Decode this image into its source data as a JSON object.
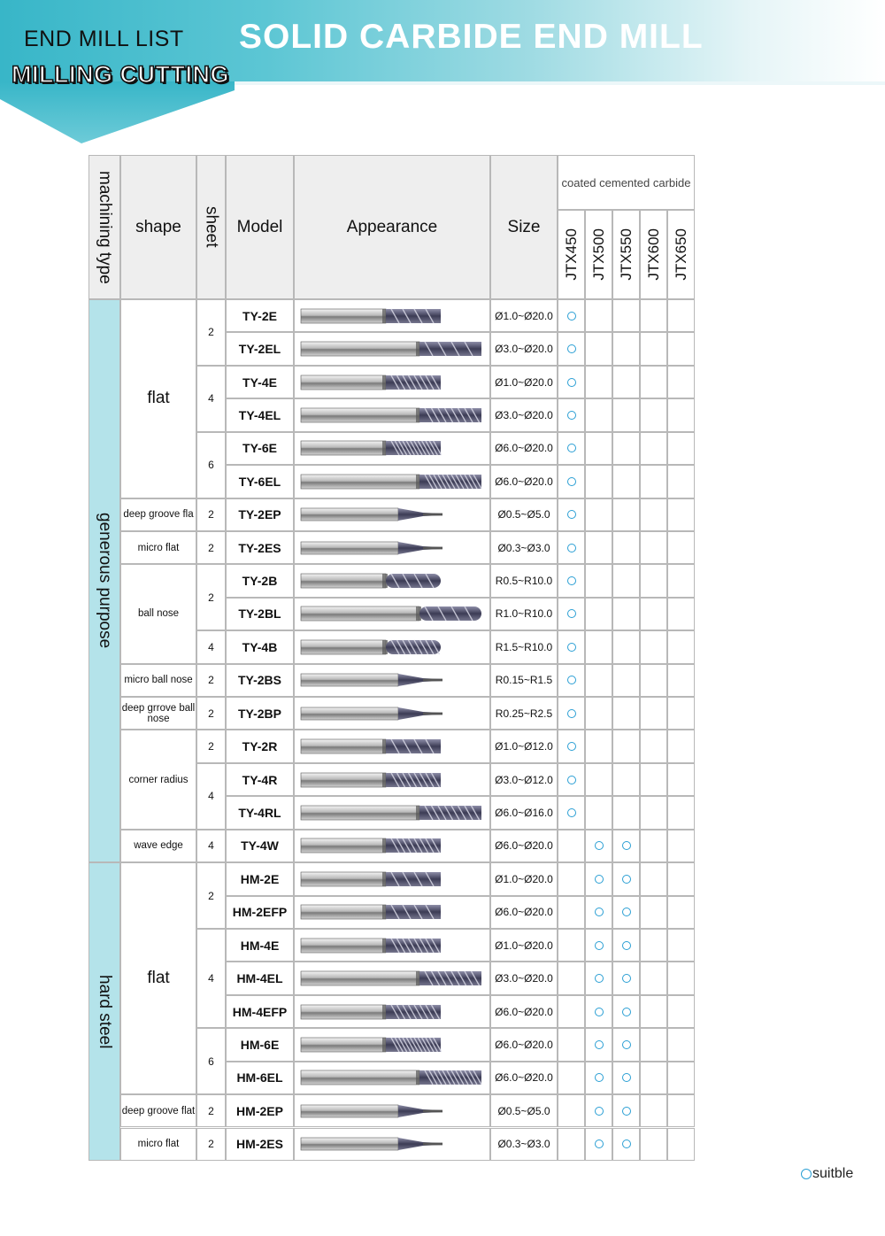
{
  "header": {
    "left_title": "END MILL LIST",
    "sub_title": "MILLING CUTTING",
    "main_title": "SOLID CARBIDE END MILL"
  },
  "columns": {
    "machining_type": "machining type",
    "shape": "shape",
    "sheet": "sheet",
    "model": "Model",
    "appearance": "Appearance",
    "size": "Size",
    "coating_group": "coated cemented carbide",
    "grades": [
      "JTX450",
      "JTX500",
      "JTX550",
      "JTX600",
      "JTX650"
    ]
  },
  "machining_types": [
    {
      "label": "generous purpose",
      "rows": 17
    },
    {
      "label": "hard steel",
      "rows": 9
    }
  ],
  "shape_groups": [
    {
      "label": "flat",
      "rows": 6,
      "big": true
    },
    {
      "label": "deep groove fla",
      "rows": 1
    },
    {
      "label": "micro flat",
      "rows": 1
    },
    {
      "label": "ball nose",
      "rows": 3
    },
    {
      "label": "micro ball nose",
      "rows": 1
    },
    {
      "label": "deep grrove ball nose",
      "rows": 1
    },
    {
      "label": "corner radius",
      "rows": 3
    },
    {
      "label": "wave edge",
      "rows": 1
    },
    {
      "label": "flat",
      "rows": 7,
      "big": true
    },
    {
      "label": "deep groove flat",
      "rows": 1
    },
    {
      "label": "micro flat",
      "rows": 1
    }
  ],
  "sheet_groups": [
    {
      "value": "2",
      "rows": 2
    },
    {
      "value": "4",
      "rows": 2
    },
    {
      "value": "6",
      "rows": 2
    },
    {
      "value": "2",
      "rows": 1
    },
    {
      "value": "2",
      "rows": 1
    },
    {
      "value": "2",
      "rows": 2
    },
    {
      "value": "4",
      "rows": 1
    },
    {
      "value": "2",
      "rows": 1
    },
    {
      "value": "2",
      "rows": 1
    },
    {
      "value": "2",
      "rows": 1
    },
    {
      "value": "4",
      "rows": 2
    },
    {
      "value": "4",
      "rows": 1
    },
    {
      "value": "2",
      "rows": 2
    },
    {
      "value": "4",
      "rows": 3
    },
    {
      "value": "6",
      "rows": 2
    },
    {
      "value": "2",
      "rows": 1
    },
    {
      "value": "2",
      "rows": 1
    }
  ],
  "rows": [
    {
      "model": "TY-2E",
      "size": "Ø1.0~Ø20.0",
      "suitable": [
        true,
        false,
        false,
        false,
        false
      ],
      "tool_icon": "short-2-flute-end-mill-icon"
    },
    {
      "model": "TY-2EL",
      "size": "Ø3.0~Ø20.0",
      "suitable": [
        true,
        false,
        false,
        false,
        false
      ],
      "tool_icon": "long-2-flute-end-mill-icon"
    },
    {
      "model": "TY-4E",
      "size": "Ø1.0~Ø20.0",
      "suitable": [
        true,
        false,
        false,
        false,
        false
      ],
      "tool_icon": "short-4-flute-end-mill-icon"
    },
    {
      "model": "TY-4EL",
      "size": "Ø3.0~Ø20.0",
      "suitable": [
        true,
        false,
        false,
        false,
        false
      ],
      "tool_icon": "long-4-flute-end-mill-icon"
    },
    {
      "model": "TY-6E",
      "size": "Ø6.0~Ø20.0",
      "suitable": [
        true,
        false,
        false,
        false,
        false
      ],
      "tool_icon": "short-6-flute-end-mill-icon"
    },
    {
      "model": "TY-6EL",
      "size": "Ø6.0~Ø20.0",
      "suitable": [
        true,
        false,
        false,
        false,
        false
      ],
      "tool_icon": "long-6-flute-end-mill-icon"
    },
    {
      "model": "TY-2EP",
      "size": "Ø0.5~Ø5.0",
      "suitable": [
        true,
        false,
        false,
        false,
        false
      ],
      "tool_icon": "deep-groove-end-mill-icon"
    },
    {
      "model": "TY-2ES",
      "size": "Ø0.3~Ø3.0",
      "suitable": [
        true,
        false,
        false,
        false,
        false
      ],
      "tool_icon": "micro-end-mill-icon"
    },
    {
      "model": "TY-2B",
      "size": "R0.5~R10.0",
      "suitable": [
        true,
        false,
        false,
        false,
        false
      ],
      "tool_icon": "ball-nose-end-mill-icon"
    },
    {
      "model": "TY-2BL",
      "size": "R1.0~R10.0",
      "suitable": [
        true,
        false,
        false,
        false,
        false
      ],
      "tool_icon": "long-ball-nose-end-mill-icon"
    },
    {
      "model": "TY-4B",
      "size": "R1.5~R10.0",
      "suitable": [
        true,
        false,
        false,
        false,
        false
      ],
      "tool_icon": "4-flute-ball-nose-end-mill-icon"
    },
    {
      "model": "TY-2BS",
      "size": "R0.15~R1.5",
      "suitable": [
        true,
        false,
        false,
        false,
        false
      ],
      "tool_icon": "micro-ball-nose-end-mill-icon"
    },
    {
      "model": "TY-2BP",
      "size": "R0.25~R2.5",
      "suitable": [
        true,
        false,
        false,
        false,
        false
      ],
      "tool_icon": "deep-groove-ball-nose-end-mill-icon"
    },
    {
      "model": "TY-2R",
      "size": "Ø1.0~Ø12.0",
      "suitable": [
        true,
        false,
        false,
        false,
        false
      ],
      "tool_icon": "corner-radius-end-mill-icon"
    },
    {
      "model": "TY-4R",
      "size": "Ø3.0~Ø12.0",
      "suitable": [
        true,
        false,
        false,
        false,
        false
      ],
      "tool_icon": "4-flute-corner-radius-end-mill-icon"
    },
    {
      "model": "TY-4RL",
      "size": "Ø6.0~Ø16.0",
      "suitable": [
        true,
        false,
        false,
        false,
        false
      ],
      "tool_icon": "long-corner-radius-end-mill-icon"
    },
    {
      "model": "TY-4W",
      "size": "Ø6.0~Ø20.0",
      "suitable": [
        false,
        true,
        true,
        false,
        false
      ],
      "tool_icon": "wave-edge-end-mill-icon"
    },
    {
      "model": "HM-2E",
      "size": "Ø1.0~Ø20.0",
      "suitable": [
        false,
        true,
        true,
        false,
        false
      ],
      "tool_icon": "short-2-flute-end-mill-icon"
    },
    {
      "model": "HM-2EFP",
      "size": "Ø6.0~Ø20.0",
      "suitable": [
        false,
        true,
        true,
        false,
        false
      ],
      "tool_icon": "flat-pocket-end-mill-icon"
    },
    {
      "model": "HM-4E",
      "size": "Ø1.0~Ø20.0",
      "suitable": [
        false,
        true,
        true,
        false,
        false
      ],
      "tool_icon": "short-4-flute-end-mill-icon"
    },
    {
      "model": "HM-4EL",
      "size": "Ø3.0~Ø20.0",
      "suitable": [
        false,
        true,
        true,
        false,
        false
      ],
      "tool_icon": "long-4-flute-end-mill-icon"
    },
    {
      "model": "HM-4EFP",
      "size": "Ø6.0~Ø20.0",
      "suitable": [
        false,
        true,
        true,
        false,
        false
      ],
      "tool_icon": "4-flute-flat-pocket-end-mill-icon"
    },
    {
      "model": "HM-6E",
      "size": "Ø6.0~Ø20.0",
      "suitable": [
        false,
        true,
        true,
        false,
        false
      ],
      "tool_icon": "short-6-flute-end-mill-icon"
    },
    {
      "model": "HM-6EL",
      "size": "Ø6.0~Ø20.0",
      "suitable": [
        false,
        true,
        true,
        false,
        false
      ],
      "tool_icon": "long-6-flute-end-mill-icon"
    },
    {
      "model": "HM-2EP",
      "size": "Ø0.5~Ø5.0",
      "suitable": [
        false,
        true,
        true,
        false,
        false
      ],
      "tool_icon": "deep-groove-end-mill-icon"
    },
    {
      "model": "HM-2ES",
      "size": "Ø0.3~Ø3.0",
      "suitable": [
        false,
        true,
        true,
        false,
        false
      ],
      "tool_icon": "micro-end-mill-icon"
    }
  ],
  "legend": {
    "label": "suitble",
    "icon": "suitable-circle-icon"
  },
  "colors": {
    "header_band": "#38b6c8",
    "machining_type_bg": "#b4e3ea",
    "header_cell_bg": "#eeeeee",
    "mark": "#2a9fd4",
    "border": "#b8b8b8"
  }
}
